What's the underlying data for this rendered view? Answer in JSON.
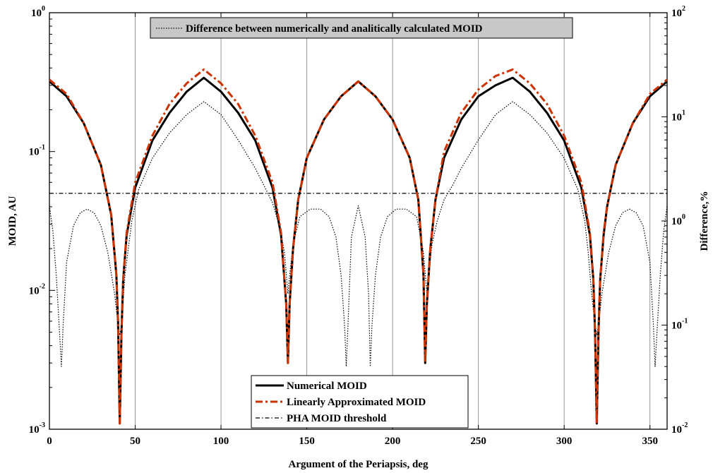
{
  "chart_data": {
    "type": "line",
    "xlabel": "Argument of the Periapsis, deg",
    "ylabel_left": "MOID, AU",
    "ylabel_right": "Difference,%",
    "xlim": [
      0,
      360
    ],
    "ylim_left": [
      0.001,
      1
    ],
    "ylim_right": [
      0.01,
      100
    ],
    "yscale": "log",
    "grid": "vertical lines only",
    "x_ticks": [
      "0",
      "50",
      "100",
      "150",
      "200",
      "250",
      "300",
      "350"
    ],
    "y_ticks_left": [
      {
        "base": "10",
        "exp": "-3"
      },
      {
        "base": "10",
        "exp": "-2"
      },
      {
        "base": "10",
        "exp": "-1"
      },
      {
        "base": "10",
        "exp": "0"
      }
    ],
    "y_ticks_right": [
      {
        "base": "10",
        "exp": "-2"
      },
      {
        "base": "10",
        "exp": "-1"
      },
      {
        "base": "10",
        "exp": "0"
      },
      {
        "base": "10",
        "exp": "1"
      },
      {
        "base": "10",
        "exp": "2"
      }
    ],
    "legend_bottom": [
      "Numerical MOID",
      "Linearly Approximated MOID",
      "PHA MOID threshold"
    ],
    "legend_top": [
      "Difference between numerically and analitically calculated MOID"
    ],
    "series": [
      {
        "name": "Numerical MOID",
        "axis": "left",
        "color": "#000000",
        "style": "solid",
        "x": [
          0,
          10,
          20,
          30,
          36,
          39,
          40,
          41,
          42,
          43,
          45,
          50,
          60,
          70,
          80,
          90,
          100,
          110,
          120,
          130,
          135,
          138,
          139,
          140,
          142,
          145,
          150,
          160,
          170,
          180,
          190,
          200,
          210,
          215,
          218,
          219,
          220,
          222,
          225,
          230,
          240,
          250,
          260,
          270,
          280,
          290,
          300,
          310,
          315,
          317,
          318,
          319,
          320,
          321,
          323,
          325,
          330,
          340,
          350,
          360
        ],
        "y": [
          0.32,
          0.25,
          0.16,
          0.08,
          0.035,
          0.013,
          0.006,
          0.0011,
          0.005,
          0.012,
          0.025,
          0.055,
          0.12,
          0.19,
          0.27,
          0.34,
          0.27,
          0.19,
          0.12,
          0.055,
          0.025,
          0.008,
          0.003,
          0.008,
          0.02,
          0.045,
          0.09,
          0.17,
          0.25,
          0.32,
          0.25,
          0.17,
          0.09,
          0.045,
          0.013,
          0.003,
          0.008,
          0.02,
          0.045,
          0.09,
          0.17,
          0.25,
          0.3,
          0.34,
          0.27,
          0.19,
          0.12,
          0.055,
          0.025,
          0.012,
          0.005,
          0.0011,
          0.005,
          0.012,
          0.025,
          0.04,
          0.08,
          0.16,
          0.25,
          0.32
        ]
      },
      {
        "name": "Linearly Approximated MOID",
        "axis": "left",
        "color": "#cc3300",
        "style": "dashdot",
        "x": [
          0,
          10,
          20,
          30,
          36,
          39,
          40,
          41,
          42,
          43,
          45,
          50,
          60,
          70,
          80,
          90,
          100,
          110,
          120,
          130,
          135,
          138,
          139,
          140,
          142,
          145,
          150,
          160,
          170,
          180,
          190,
          200,
          210,
          215,
          218,
          219,
          220,
          222,
          225,
          230,
          240,
          250,
          260,
          270,
          280,
          290,
          300,
          310,
          315,
          317,
          318,
          319,
          320,
          321,
          323,
          325,
          330,
          340,
          350,
          360
        ],
        "y": [
          0.33,
          0.26,
          0.16,
          0.08,
          0.035,
          0.013,
          0.006,
          0.0011,
          0.005,
          0.012,
          0.026,
          0.06,
          0.13,
          0.22,
          0.31,
          0.39,
          0.31,
          0.22,
          0.13,
          0.06,
          0.026,
          0.008,
          0.003,
          0.008,
          0.02,
          0.045,
          0.09,
          0.17,
          0.25,
          0.32,
          0.25,
          0.17,
          0.09,
          0.045,
          0.013,
          0.003,
          0.008,
          0.02,
          0.045,
          0.1,
          0.19,
          0.28,
          0.35,
          0.39,
          0.31,
          0.22,
          0.13,
          0.06,
          0.026,
          0.012,
          0.005,
          0.0011,
          0.005,
          0.012,
          0.026,
          0.04,
          0.08,
          0.16,
          0.26,
          0.33
        ]
      },
      {
        "name": "PHA MOID threshold",
        "axis": "left",
        "color": "#000000",
        "style": "dashdot-thin",
        "x": [
          0,
          360
        ],
        "y": [
          0.05,
          0.05
        ]
      },
      {
        "name": "Difference between numerically and analitically calculated MOID",
        "axis": "right",
        "color": "#000000",
        "style": "dotted",
        "x": [
          0,
          2,
          4,
          6,
          7,
          8,
          10,
          14,
          18,
          22,
          26,
          30,
          34,
          38,
          40,
          41,
          42,
          44,
          48,
          52,
          60,
          70,
          80,
          90,
          100,
          110,
          120,
          125,
          130,
          134,
          137,
          139,
          140,
          142,
          146,
          152,
          158,
          163,
          167,
          170,
          172,
          173,
          174,
          176,
          180,
          184,
          186,
          187,
          188,
          190,
          193,
          197,
          202,
          208,
          214,
          218,
          220,
          221,
          223,
          226,
          230,
          235,
          240,
          250,
          260,
          270,
          280,
          290,
          300,
          308,
          312,
          314,
          316,
          318,
          319,
          320,
          322,
          326,
          330,
          334,
          338,
          342,
          346,
          350,
          352,
          353,
          354,
          356,
          358,
          360
        ],
        "y": [
          1.4,
          0.8,
          0.3,
          0.08,
          0.04,
          0.1,
          0.4,
          0.9,
          1.2,
          1.3,
          1.2,
          0.9,
          0.5,
          0.2,
          0.1,
          0.08,
          0.1,
          0.3,
          1.0,
          2.0,
          4.0,
          7.0,
          10.5,
          14.0,
          10.5,
          6.0,
          3.2,
          2.2,
          1.5,
          0.9,
          0.5,
          0.2,
          0.3,
          0.6,
          1.1,
          1.3,
          1.3,
          1.1,
          0.7,
          0.3,
          0.1,
          0.04,
          0.1,
          0.7,
          1.4,
          0.7,
          0.2,
          0.04,
          0.1,
          0.3,
          0.7,
          1.1,
          1.3,
          1.3,
          1.1,
          0.5,
          0.2,
          0.3,
          0.6,
          1.0,
          1.6,
          2.2,
          3.2,
          6.0,
          10.5,
          14.0,
          10.5,
          7.0,
          4.0,
          2.0,
          1.0,
          0.5,
          0.2,
          0.1,
          0.08,
          0.1,
          0.2,
          0.5,
          0.9,
          1.2,
          1.3,
          1.2,
          0.9,
          0.4,
          0.1,
          0.04,
          0.08,
          0.3,
          0.8,
          1.4
        ]
      }
    ]
  }
}
